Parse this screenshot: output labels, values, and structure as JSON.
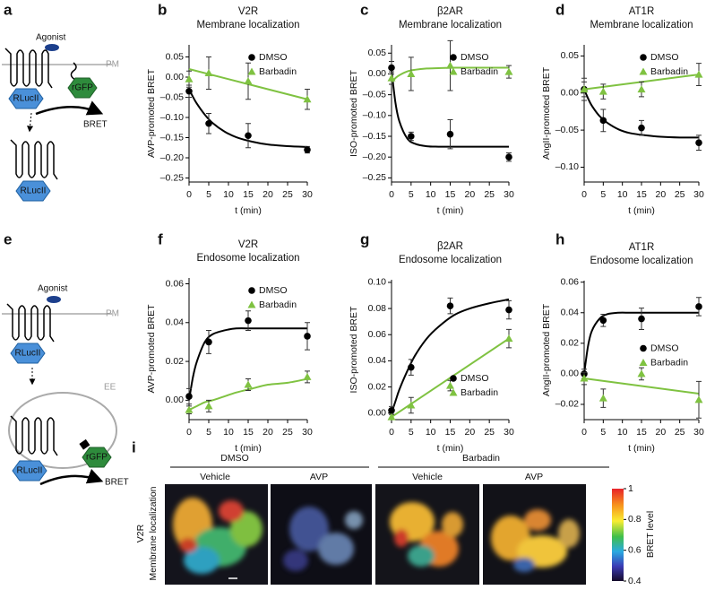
{
  "chart_data": [
    {
      "type": "scatter",
      "panel": "b",
      "title": "V2R",
      "subtitle": "Membrane localization",
      "xlabel": "t (min)",
      "ylabel": "AVP-promoted BRET",
      "xlim": [
        0,
        30
      ],
      "xticks": [
        0,
        5,
        10,
        15,
        20,
        25,
        30
      ],
      "ylim": [
        -0.26,
        0.08
      ],
      "yticks": [
        0.05,
        {
          "value": 0,
          "label": "0.00"
        },
        {
          "value": -0.05,
          "label": "–0.05"
        },
        {
          "value": -0.1,
          "label": "–0.10"
        },
        {
          "value": -0.15,
          "label": "–0.15"
        },
        {
          "value": -0.2,
          "label": "–0.20"
        },
        {
          "value": -0.25,
          "label": "–0.25"
        }
      ],
      "legend": "upper right",
      "series": [
        {
          "name": "DMSO",
          "color": "#000000",
          "marker": "circle",
          "x": [
            0,
            5,
            15,
            30
          ],
          "values": [
            -0.035,
            -0.115,
            -0.145,
            -0.18
          ],
          "errors": [
            0.015,
            0.025,
            0.03,
            0.008
          ],
          "fit": {
            "x": [
              0,
              1,
              2,
              4,
              6,
              9,
              12,
              16,
              20,
              25,
              30
            ],
            "values": [
              -0.03,
              -0.049,
              -0.066,
              -0.093,
              -0.114,
              -0.135,
              -0.149,
              -0.16,
              -0.167,
              -0.171,
              -0.173
            ]
          }
        },
        {
          "name": "Barbadin",
          "color": "#7fc241",
          "marker": "triangle",
          "x": [
            0,
            5,
            15,
            30
          ],
          "values": [
            -0.005,
            0.01,
            -0.01,
            -0.055
          ],
          "errors": [
            0.02,
            0.04,
            0.045,
            0.025
          ],
          "fit": {
            "x": [
              0,
              30
            ],
            "values": [
              0.02,
              -0.055
            ]
          }
        }
      ]
    },
    {
      "type": "scatter",
      "panel": "c",
      "title": "β2AR",
      "subtitle": "Membrane localization",
      "xlabel": "t (min)",
      "ylabel": "ISO-promoted BRET",
      "xlim": [
        0,
        30
      ],
      "xticks": [
        0,
        5,
        10,
        15,
        20,
        25,
        30
      ],
      "ylim": [
        -0.26,
        0.07
      ],
      "yticks": [
        0.05,
        {
          "value": 0,
          "label": "0.00"
        },
        {
          "value": -0.05,
          "label": "–0.05"
        },
        {
          "value": -0.1,
          "label": "–0.10"
        },
        {
          "value": -0.15,
          "label": "–0.15"
        },
        {
          "value": -0.2,
          "label": "–0.20"
        },
        {
          "value": -0.25,
          "label": "–0.25"
        }
      ],
      "legend": "upper right",
      "series": [
        {
          "name": "DMSO",
          "color": "#000000",
          "marker": "circle",
          "x": [
            0,
            5,
            15,
            30
          ],
          "values": [
            0.015,
            -0.15,
            -0.145,
            -0.2
          ],
          "errors": [
            0.015,
            0.01,
            0.035,
            0.01
          ],
          "fit": {
            "x": [
              0,
              1,
              2,
              4,
              6,
              9,
              12,
              16,
              20,
              25,
              30
            ],
            "values": [
              0.01,
              -0.069,
              -0.114,
              -0.155,
              -0.168,
              -0.174,
              -0.175,
              -0.175,
              -0.175,
              -0.175,
              -0.175
            ]
          }
        },
        {
          "name": "Barbadin",
          "color": "#7fc241",
          "marker": "triangle",
          "x": [
            0,
            5,
            15,
            30
          ],
          "values": [
            -0.01,
            0,
            0.02,
            0.005
          ],
          "errors": [
            0.015,
            0.04,
            0.06,
            0.015
          ],
          "fit": {
            "x": [
              0,
              1,
              2,
              4,
              6,
              9,
              12,
              16,
              20,
              25,
              30
            ],
            "values": [
              -0.02,
              -0.01,
              -0.003,
              0.006,
              0.01,
              0.013,
              0.014,
              0.015,
              0.015,
              0.015,
              0.015
            ]
          }
        }
      ]
    },
    {
      "type": "scatter",
      "panel": "d",
      "title": "AT1R",
      "subtitle": "Membrane localization",
      "xlabel": "t (min)",
      "ylabel": "AngII-promoted BRET",
      "xlim": [
        0,
        30
      ],
      "xticks": [
        0,
        5,
        10,
        15,
        20,
        25,
        30
      ],
      "ylim": [
        -0.12,
        0.065
      ],
      "yticks": [
        0.05,
        {
          "value": 0,
          "label": "0.00"
        },
        {
          "value": -0.05,
          "label": "–0.05"
        },
        {
          "value": -0.1,
          "label": "–0.10"
        }
      ],
      "legend": "upper right",
      "series": [
        {
          "name": "DMSO",
          "color": "#000000",
          "marker": "circle",
          "x": [
            0,
            5,
            15,
            30
          ],
          "values": [
            0.005,
            -0.037,
            -0.047,
            -0.067
          ],
          "errors": [
            0.015,
            0.015,
            0.01,
            0.01
          ],
          "fit": {
            "x": [
              0,
              1,
              2,
              4,
              6,
              9,
              12,
              16,
              20,
              25,
              30
            ],
            "values": [
              0.005,
              -0.007,
              -0.017,
              -0.031,
              -0.04,
              -0.049,
              -0.054,
              -0.057,
              -0.059,
              -0.06,
              -0.06
            ]
          }
        },
        {
          "name": "Barbadin",
          "color": "#7fc241",
          "marker": "triangle",
          "x": [
            0,
            5,
            15,
            30
          ],
          "values": [
            0.005,
            0.002,
            0.005,
            0.025
          ],
          "errors": [
            0.01,
            0.01,
            0.01,
            0.015
          ],
          "fit": {
            "x": [
              0,
              30
            ],
            "values": [
              0.005,
              0.025
            ]
          }
        }
      ]
    },
    {
      "type": "scatter",
      "panel": "f",
      "title": "V2R",
      "subtitle": "Endosome localization",
      "xlabel": "t (min)",
      "ylabel": "AVP-promoted BRET",
      "xlim": [
        0,
        30
      ],
      "xticks": [
        0,
        5,
        10,
        15,
        20,
        25,
        30
      ],
      "ylim": [
        -0.01,
        0.063
      ],
      "yticks": [
        {
          "value": 0,
          "label": "0.00"
        },
        0.02,
        0.04,
        0.06
      ],
      "legend": "upper right",
      "series": [
        {
          "name": "DMSO",
          "color": "#000000",
          "marker": "circle",
          "x": [
            0,
            5,
            15,
            30
          ],
          "values": [
            0.002,
            0.03,
            0.041,
            0.033
          ],
          "errors": [
            0.004,
            0.006,
            0.005,
            0.007
          ],
          "fit": {
            "x": [
              0,
              1,
              2,
              4,
              6,
              9,
              12,
              16,
              20,
              25,
              30
            ],
            "values": [
              0,
              0.012,
              0.02,
              0.03,
              0.034,
              0.036,
              0.037,
              0.037,
              0.037,
              0.037,
              0.037
            ]
          }
        },
        {
          "name": "Barbadin",
          "color": "#7fc241",
          "marker": "triangle",
          "x": [
            0,
            5,
            15,
            30
          ],
          "values": [
            -0.005,
            -0.003,
            0.008,
            0.012
          ],
          "errors": [
            0.002,
            0.003,
            0.003,
            0.003
          ],
          "fit": {
            "x": [
              0,
              1,
              2,
              4,
              6,
              9,
              12,
              16,
              20,
              25,
              30
            ],
            "values": [
              -0.005,
              -0.004,
              -0.003,
              -0.001,
              0,
              0.002,
              0.004,
              0.006,
              0.008,
              0.009,
              0.011
            ]
          }
        }
      ]
    },
    {
      "type": "scatter",
      "panel": "g",
      "title": "β2AR",
      "subtitle": "Endosome localization",
      "xlabel": "t (min)",
      "ylabel": "ISO-promoted BRET",
      "xlim": [
        0,
        30
      ],
      "xticks": [
        0,
        5,
        10,
        15,
        20,
        25,
        30
      ],
      "ylim": [
        -0.005,
        0.102
      ],
      "yticks": [
        {
          "value": 0,
          "label": "0.00"
        },
        0.02,
        0.04,
        0.06,
        0.08,
        {
          "value": 0.1,
          "label": "0.10"
        }
      ],
      "legend": "lower right",
      "series": [
        {
          "name": "DMSO",
          "color": "#000000",
          "marker": "circle",
          "x": [
            0,
            5,
            15,
            30
          ],
          "values": [
            0.002,
            0.035,
            0.082,
            0.079
          ],
          "errors": [
            0.003,
            0.006,
            0.006,
            0.007
          ],
          "fit": {
            "x": [
              0,
              1,
              2,
              4,
              6,
              9,
              12,
              16,
              20,
              25,
              30
            ],
            "values": [
              0,
              0.009,
              0.018,
              0.032,
              0.044,
              0.057,
              0.066,
              0.075,
              0.08,
              0.084,
              0.087
            ]
          }
        },
        {
          "name": "Barbadin",
          "color": "#7fc241",
          "marker": "triangle",
          "x": [
            0,
            5,
            15,
            30
          ],
          "values": [
            -0.003,
            0.006,
            0.021,
            0.057
          ],
          "errors": [
            0.002,
            0.006,
            0.004,
            0.007
          ],
          "fit": {
            "x": [
              0,
              30
            ],
            "values": [
              -0.003,
              0.057
            ]
          }
        }
      ]
    },
    {
      "type": "scatter",
      "panel": "h",
      "title": "AT1R",
      "subtitle": "Endosome localization",
      "xlabel": "t (min)",
      "ylabel": "AngII-promoted BRET",
      "xlim": [
        0,
        30
      ],
      "xticks": [
        0,
        5,
        10,
        15,
        20,
        25,
        30
      ],
      "ylim": [
        -0.03,
        0.061
      ],
      "yticks": [
        {
          "value": -0.02,
          "label": "–0.02"
        },
        {
          "value": 0,
          "label": "0.00"
        },
        0.02,
        0.04,
        0.06
      ],
      "legend": "center right",
      "series": [
        {
          "name": "DMSO",
          "color": "#000000",
          "marker": "circle",
          "x": [
            0,
            5,
            15,
            30
          ],
          "values": [
            0,
            0.035,
            0.036,
            0.044
          ],
          "errors": [
            0.003,
            0.004,
            0.007,
            0.006
          ],
          "fit": {
            "x": [
              0,
              1,
              2,
              4,
              6,
              9,
              12,
              16,
              20,
              25,
              30
            ],
            "values": [
              0,
              0.018,
              0.028,
              0.036,
              0.039,
              0.04,
              0.04,
              0.04,
              0.04,
              0.04,
              0.04
            ]
          }
        },
        {
          "name": "Barbadin",
          "color": "#7fc241",
          "marker": "triangle",
          "x": [
            0,
            5,
            15,
            30
          ],
          "values": [
            -0.003,
            -0.016,
            0,
            -0.017
          ],
          "errors": [
            0.004,
            0.006,
            0.004,
            0.012
          ],
          "fit": {
            "x": [
              0,
              30
            ],
            "values": [
              -0.003,
              -0.013
            ]
          }
        }
      ]
    }
  ],
  "diagram_a": {
    "label": "a",
    "agonist": "Agonist",
    "membrane": "PM",
    "donor": [
      "RLucII",
      "RLucII"
    ],
    "acceptor": "rGFP",
    "signal": "BRET"
  },
  "diagram_e": {
    "label": "e",
    "agonist": "Agonist",
    "membrane": "PM",
    "compartment": "EE",
    "donor": [
      "RLucII",
      "RLucII"
    ],
    "acceptor": "rGFP",
    "signal": "BRET"
  },
  "panel_i": {
    "label": "i",
    "groups": [
      "DMSO",
      "Barbadin"
    ],
    "columns": [
      "Vehicle",
      "AVP",
      "Vehicle",
      "AVP"
    ],
    "row_label": [
      "V2R",
      "Membrane localization"
    ],
    "colorbar": {
      "label": "BRET level",
      "lim": [
        0.4,
        1
      ],
      "ticks": [
        1,
        0.8,
        0.6,
        0.4
      ]
    }
  }
}
